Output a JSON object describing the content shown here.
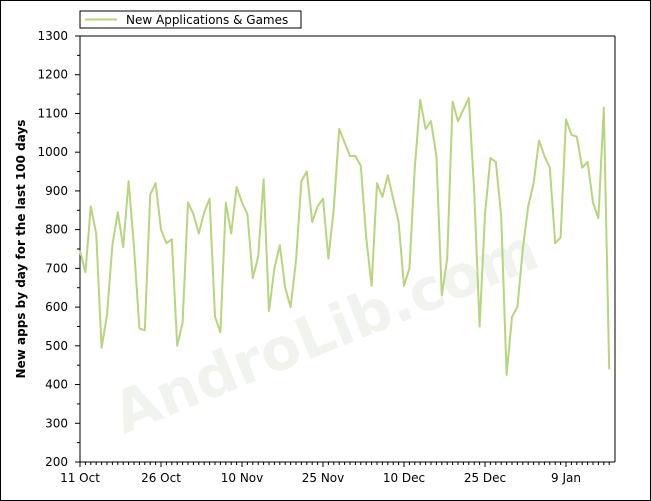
{
  "chart_data": {
    "type": "line",
    "title": "",
    "xlabel": "",
    "ylabel": "New apps by day for the last 100 days",
    "watermark": "AndroLib.com",
    "ylim": [
      200,
      1300
    ],
    "yticks": [
      200,
      300,
      400,
      500,
      600,
      700,
      800,
      900,
      1000,
      1100,
      1200,
      1300
    ],
    "x_start_label": "11 Oct",
    "x_tick_labels": [
      "11 Oct",
      "26 Oct",
      "10 Nov",
      "25 Nov",
      "10 Dec",
      "25 Dec",
      "9 Jan"
    ],
    "x_tick_day_offsets": [
      0,
      15,
      30,
      45,
      60,
      75,
      90
    ],
    "grid": false,
    "legend_position": "top-left",
    "colors": {
      "series": "#b5d67e"
    },
    "series": [
      {
        "name": "New Applications & Games",
        "values": [
          745,
          690,
          860,
          790,
          495,
          580,
          760,
          845,
          755,
          925,
          755,
          545,
          540,
          890,
          920,
          800,
          765,
          775,
          500,
          560,
          870,
          840,
          790,
          845,
          880,
          575,
          535,
          870,
          790,
          910,
          870,
          840,
          675,
          730,
          930,
          590,
          700,
          760,
          650,
          600,
          720,
          925,
          950,
          820,
          860,
          880,
          725,
          855,
          1060,
          1025,
          990,
          990,
          965,
          780,
          655,
          920,
          885,
          940,
          880,
          820,
          655,
          700,
          960,
          1135,
          1060,
          1080,
          990,
          630,
          725,
          1130,
          1080,
          1110,
          1140,
          900,
          550,
          840,
          985,
          975,
          835,
          425,
          575,
          600,
          750,
          860,
          920,
          1030,
          990,
          960,
          765,
          780,
          1085,
          1045,
          1040,
          960,
          975,
          870,
          830,
          1115,
          440
        ]
      }
    ]
  }
}
